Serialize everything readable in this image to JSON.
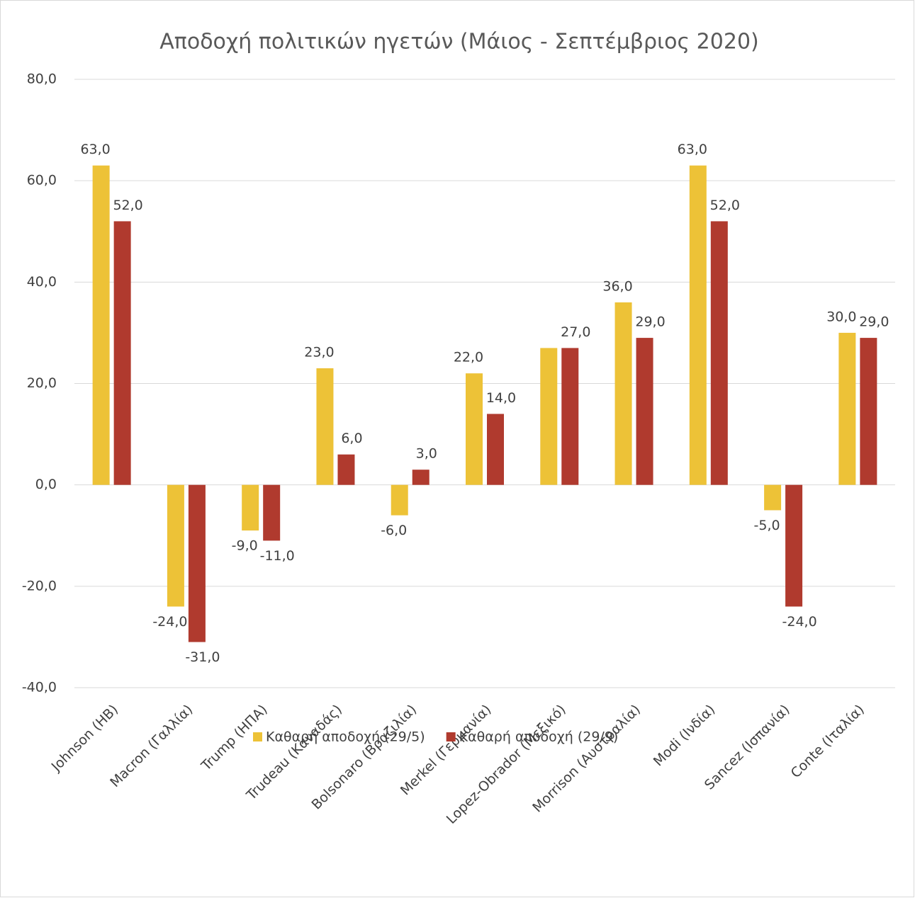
{
  "chart_data": {
    "type": "bar",
    "title": "Αποδοχή πολιτικών ηγετών (Μάιος - Σεπτέμβριος 2020)",
    "categories": [
      "Johnson (ΗΒ)",
      "Macron (Γαλλία)",
      "Trump (ΗΠΑ)",
      "Trudeau (Καναδάς)",
      "Bolsonaro (Βραζιλία)",
      "Merkel (Γερμανία)",
      "Lopez-Obrador (Μεξικό)",
      "Morrison (Αυστραλία)",
      "Modi (Ινδία)",
      "Sancez (Ισπανία)",
      "Conte (Ιταλία)"
    ],
    "series": [
      {
        "name": "Καθαρή αποδοχή (29/5)",
        "color": "#EDC237",
        "values": [
          63,
          -24,
          -9,
          23,
          -6,
          22,
          27,
          36,
          63,
          -5,
          30
        ],
        "value_labels": [
          "63,0",
          "-24,0",
          "-9,0",
          "23,0",
          "-6,0",
          "22,0",
          "",
          "36,0",
          "63,0",
          "-5,0",
          "30,0"
        ]
      },
      {
        "name": "Καθαρή αποδοχή (29/9)",
        "color": "#B03A2E",
        "values": [
          52,
          -31,
          -11,
          6,
          3,
          14,
          27,
          29,
          52,
          -24,
          29
        ],
        "value_labels": [
          "52,0",
          "-31,0",
          "-11,0",
          "6,0",
          "3,0",
          "14,0",
          "27,0",
          "29,0",
          "52,0",
          "-24,0",
          "29,0"
        ]
      }
    ],
    "ylim": [
      -40,
      80
    ],
    "yticks": [
      {
        "value": -40,
        "label": "-40,0"
      },
      {
        "value": -20,
        "label": "-20,0"
      },
      {
        "value": 0,
        "label": "0,0"
      },
      {
        "value": 20,
        "label": "20,0"
      },
      {
        "value": 40,
        "label": "40,0"
      },
      {
        "value": 60,
        "label": "60,0"
      },
      {
        "value": 80,
        "label": "80,0"
      }
    ],
    "grid": true,
    "legend": "bottom"
  }
}
